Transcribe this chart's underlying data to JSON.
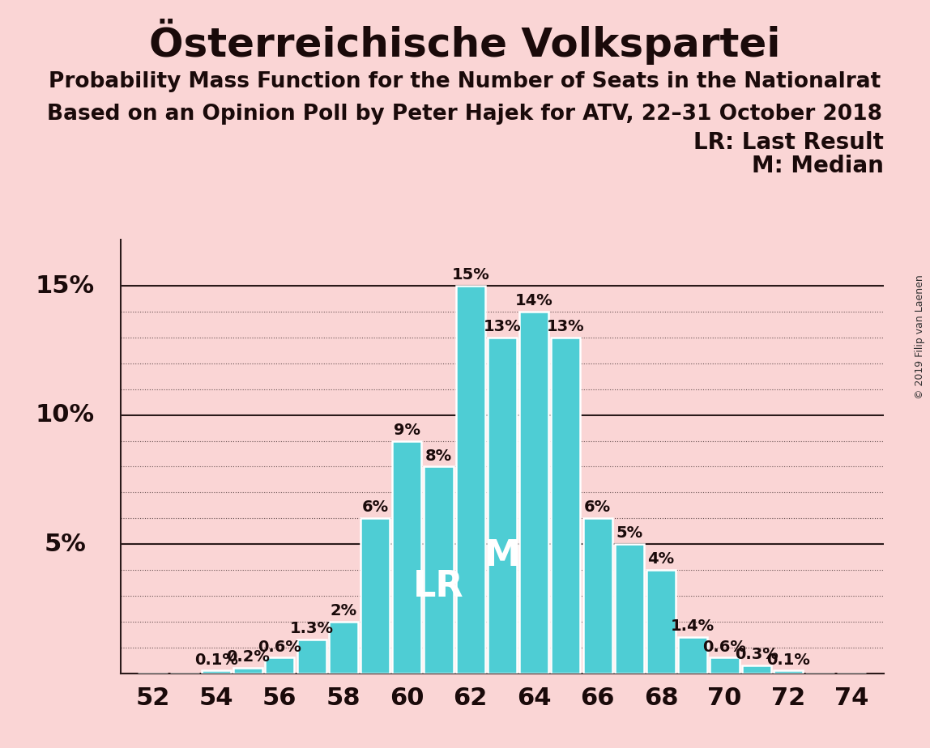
{
  "title": "Österreichische Volkspartei",
  "subtitle1": "Probability Mass Function for the Number of Seats in the Nationalrat",
  "subtitle2": "Based on an Opinion Poll by Peter Hajek for ATV, 22–31 October 2018",
  "copyright": "© 2019 Filip van Laenen",
  "background_color": "#fad5d5",
  "bar_color": "#4ECDD4",
  "bar_edge_color": "#ffffff",
  "seats": [
    52,
    53,
    54,
    55,
    56,
    57,
    58,
    59,
    60,
    61,
    62,
    63,
    64,
    65,
    66,
    67,
    68,
    69,
    70,
    71,
    72,
    73,
    74
  ],
  "probabilities": [
    0.0,
    0.0,
    0.1,
    0.2,
    0.6,
    1.3,
    2.0,
    6.0,
    9.0,
    8.0,
    15.0,
    13.0,
    14.0,
    13.0,
    6.0,
    5.0,
    4.0,
    1.4,
    0.6,
    0.3,
    0.1,
    0.0,
    0.0
  ],
  "LR_seat": 61,
  "M_seat": 63,
  "ylim_max": 16.8,
  "solid_lines": [
    5.0,
    10.0,
    15.0
  ],
  "dotted_lines": [
    1.0,
    2.0,
    3.0,
    4.0,
    6.0,
    7.0,
    8.0,
    9.0,
    11.0,
    12.0,
    13.0,
    14.0
  ],
  "xticks": [
    52,
    54,
    56,
    58,
    60,
    62,
    64,
    66,
    68,
    70,
    72,
    74
  ],
  "ytick_positions": [
    5.0,
    10.0,
    15.0
  ],
  "ytick_labels": [
    "5%",
    "10%",
    "15%"
  ],
  "title_fontsize": 36,
  "subtitle_fontsize": 19,
  "tick_fontsize": 22,
  "bar_label_fontsize": 14,
  "legend_fontsize": 20,
  "LR_label_fontsize": 32,
  "M_label_fontsize": 32,
  "axis_color": "#2a1a1a",
  "label_color": "#1a0a0a"
}
